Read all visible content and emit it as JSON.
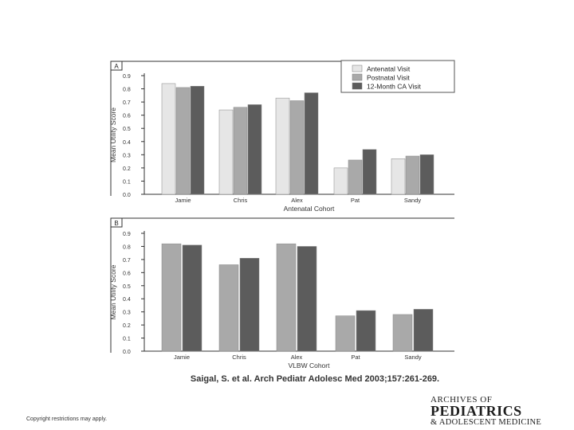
{
  "citation": "Saigal, S. et al. Arch Pediatr Adolesc Med 2003;157:261-269.",
  "copyright": "Copyright restrictions may apply.",
  "journal_logo": {
    "line1": "ARCHIVES OF",
    "line2": "PEDIATRICS",
    "line3": "& ADOLESCENT MEDICINE"
  },
  "colors": {
    "series_light": "#e6e6e6",
    "series_mid": "#a9a9a9",
    "series_dark": "#5c5c5c"
  },
  "chart_data": [
    {
      "panel_label": "A",
      "type": "bar",
      "xlabel": "Antenatal Cohort",
      "ylabel": "Mean Utility Score",
      "ylim": [
        0,
        0.9
      ],
      "yticks": [
        "0.0",
        "0.1",
        "0.2",
        "0.3",
        "0.4",
        "0.5",
        "0.6",
        "0.7",
        "0.8",
        "0.9"
      ],
      "categories": [
        "Jamie",
        "Chris",
        "Alex",
        "Pat",
        "Sandy"
      ],
      "legend_position": "top-right",
      "series": [
        {
          "name": "Antenatal Visit",
          "color": "#e6e6e6",
          "values": [
            0.84,
            0.64,
            0.73,
            0.2,
            0.27
          ]
        },
        {
          "name": "Postnatal Visit",
          "color": "#a9a9a9",
          "values": [
            0.81,
            0.66,
            0.71,
            0.26,
            0.29
          ]
        },
        {
          "name": "12-Month CA Visit",
          "color": "#5c5c5c",
          "values": [
            0.82,
            0.68,
            0.77,
            0.34,
            0.3
          ]
        }
      ]
    },
    {
      "panel_label": "B",
      "type": "bar",
      "xlabel": "VLBW Cohort",
      "ylabel": "Mean Utility Score",
      "ylim": [
        0,
        0.9
      ],
      "yticks": [
        "0.0",
        "0.1",
        "0.2",
        "0.3",
        "0.4",
        "0.5",
        "0.6",
        "0.7",
        "0.8",
        "0.9"
      ],
      "categories": [
        "Jamie",
        "Chris",
        "Alex",
        "Pat",
        "Sandy"
      ],
      "series": [
        {
          "color": "#a9a9a9",
          "values": [
            0.82,
            0.66,
            0.82,
            0.27,
            0.28
          ]
        },
        {
          "color": "#5c5c5c",
          "values": [
            0.81,
            0.71,
            0.8,
            0.31,
            0.32
          ]
        }
      ]
    }
  ]
}
